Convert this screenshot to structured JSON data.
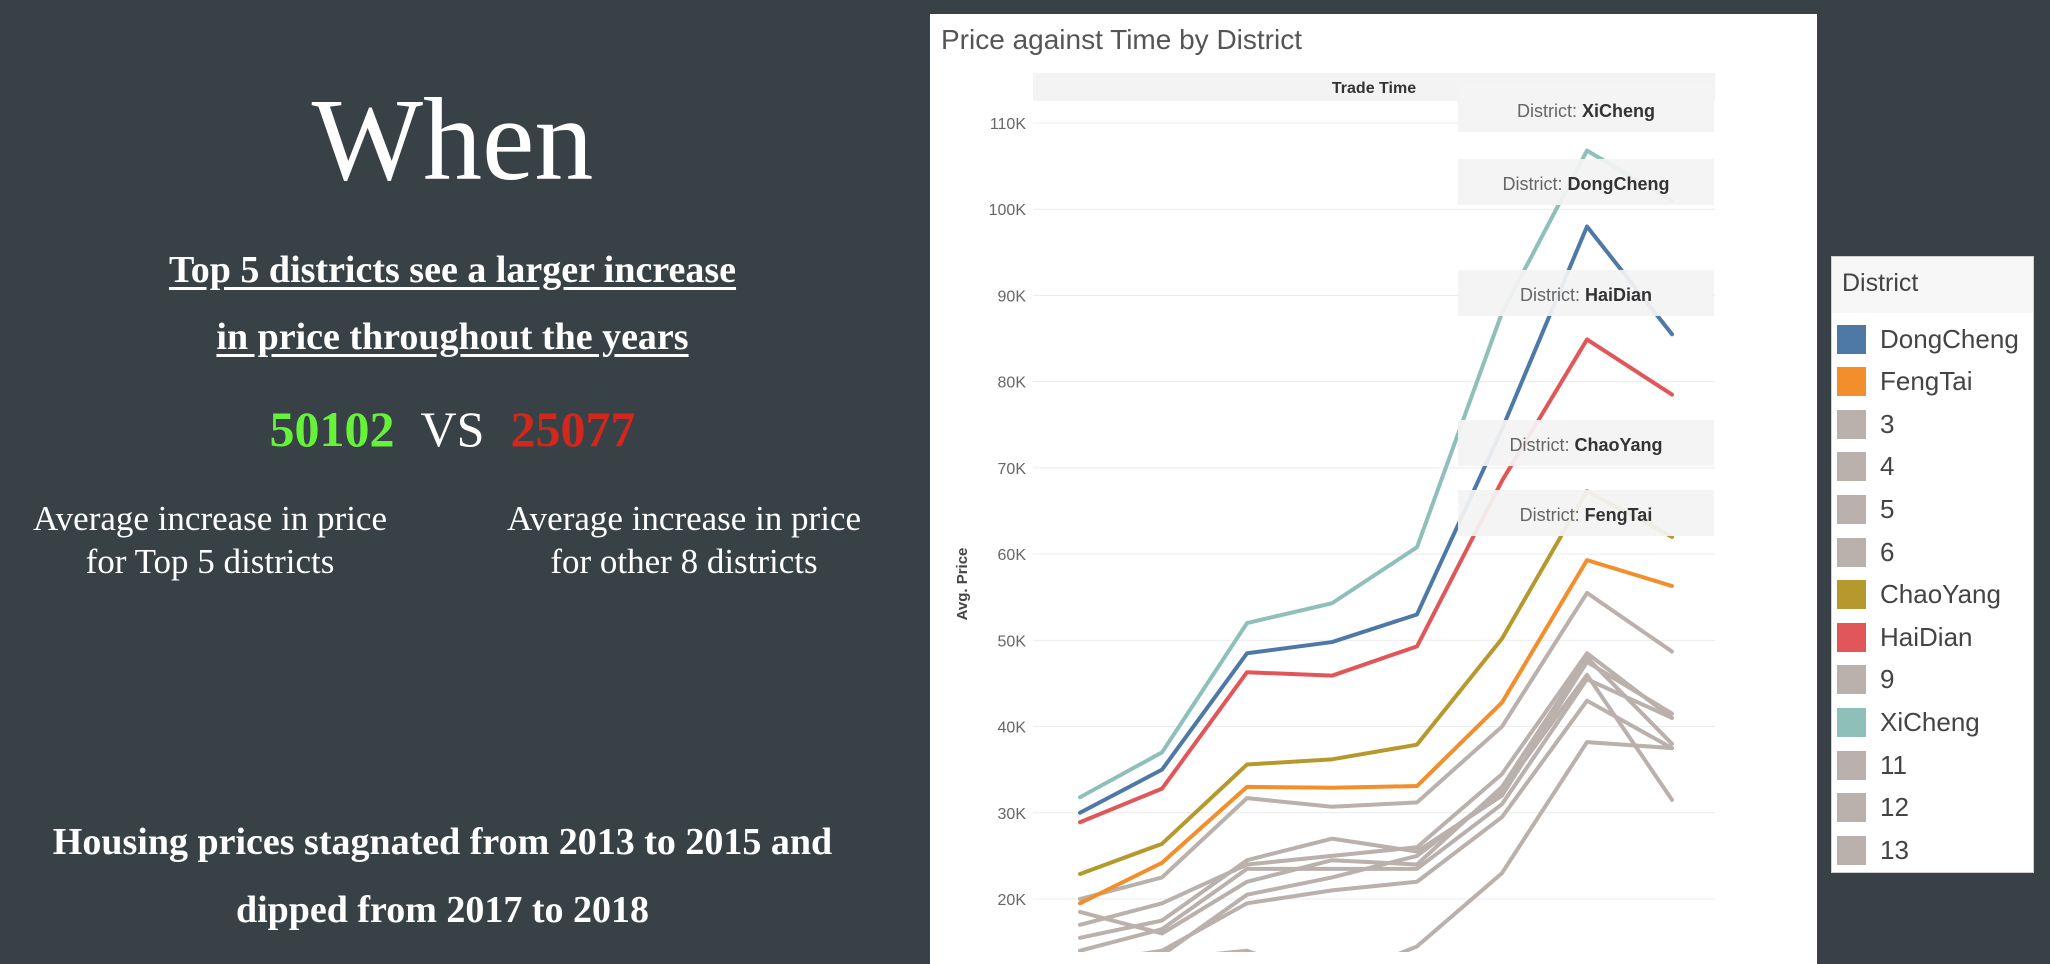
{
  "left": {
    "headline": "When",
    "subhead_line1": "Top 5 districts see a larger increase",
    "subhead_line2": "in price throughout the years",
    "compare_top": "50102",
    "compare_vs": "VS",
    "compare_other": "25077",
    "caption_left_line1": "Average increase in price",
    "caption_left_line2": "for Top 5 districts",
    "caption_right_line1": "Average increase in price",
    "caption_right_line2": "for other 8 districts",
    "footnote_line1": "Housing prices stagnated from 2013 to 2015 and",
    "footnote_line2": "dipped from 2017 to 2018"
  },
  "colors": {
    "compare_top": "#67f23a",
    "compare_other": "#d2271d",
    "background": "#374146"
  },
  "chart_data": {
    "type": "line",
    "title": "Price against Time by District",
    "header": "Trade Time",
    "ylabel": "Avg. Price",
    "xlabel": "",
    "ylim": [
      9000,
      113000
    ],
    "yticks": [
      20000,
      30000,
      40000,
      50000,
      60000,
      70000,
      80000,
      90000,
      100000,
      110000
    ],
    "ytick_labels": [
      "20K",
      "30K",
      "40K",
      "50K",
      "60K",
      "70K",
      "80K",
      "90K",
      "100K",
      "110K"
    ],
    "x": [
      1,
      2,
      3,
      4,
      5,
      6,
      7,
      8
    ],
    "grid": "horizontal",
    "legend_position": "right",
    "legend_title": "District",
    "series": [
      {
        "name": "DongCheng",
        "color": "#4e79a7",
        "values": [
          30000,
          35000,
          48500,
          49800,
          53000,
          74500,
          98000,
          85500
        ]
      },
      {
        "name": "FengTai",
        "color": "#f28e2b",
        "values": [
          19500,
          24200,
          33000,
          32900,
          33100,
          42800,
          59300,
          56300
        ]
      },
      {
        "name": "3",
        "color": "#bab0ac",
        "values": [
          17000,
          19500,
          24000,
          25000,
          26000,
          34500,
          48500,
          41000
        ]
      },
      {
        "name": "4",
        "color": "#bab0ac",
        "values": [
          15500,
          17500,
          24500,
          27000,
          25500,
          32000,
          47500,
          41500
        ]
      },
      {
        "name": "5",
        "color": "#bab0ac",
        "values": [
          14000,
          16500,
          23500,
          23500,
          23500,
          31000,
          45500,
          41000
        ]
      },
      {
        "name": "6",
        "color": "#bab0ac",
        "values": [
          12500,
          14000,
          19500,
          21000,
          22000,
          29500,
          43000,
          37500
        ]
      },
      {
        "name": "ChaoYang",
        "color": "#b6992d",
        "values": [
          22900,
          26400,
          35600,
          36200,
          37900,
          50200,
          67300,
          62000
        ]
      },
      {
        "name": "HaiDian",
        "color": "#e15759",
        "values": [
          28900,
          32800,
          46300,
          45900,
          49300,
          68500,
          84900,
          78500
        ]
      },
      {
        "name": "9",
        "color": "#bab0ac",
        "values": [
          10500,
          13000,
          14000,
          10500,
          14500,
          23000,
          38200,
          37500
        ]
      },
      {
        "name": "XiCheng",
        "color": "#8ebfb9",
        "values": [
          31800,
          37000,
          52000,
          54300,
          60800,
          88000,
          106800,
          101000
        ]
      },
      {
        "name": "11",
        "color": "#bab0ac",
        "values": [
          11500,
          13500,
          20500,
          22500,
          25000,
          32500,
          46000,
          31500
        ]
      },
      {
        "name": "12",
        "color": "#bab0ac",
        "values": [
          18500,
          16000,
          22000,
          24500,
          24000,
          33000,
          48000,
          38000
        ]
      },
      {
        "name": "13",
        "color": "#bab0ac",
        "values": [
          20000,
          22500,
          31700,
          30700,
          31200,
          40000,
          55500,
          48700
        ]
      }
    ],
    "annotations": [
      {
        "prefix": "District:",
        "name": "XiCheng"
      },
      {
        "prefix": "District:",
        "name": "DongCheng"
      },
      {
        "prefix": "District:",
        "name": "HaiDian"
      },
      {
        "prefix": "District:",
        "name": "ChaoYang"
      },
      {
        "prefix": "District:",
        "name": "FengTai"
      }
    ]
  }
}
